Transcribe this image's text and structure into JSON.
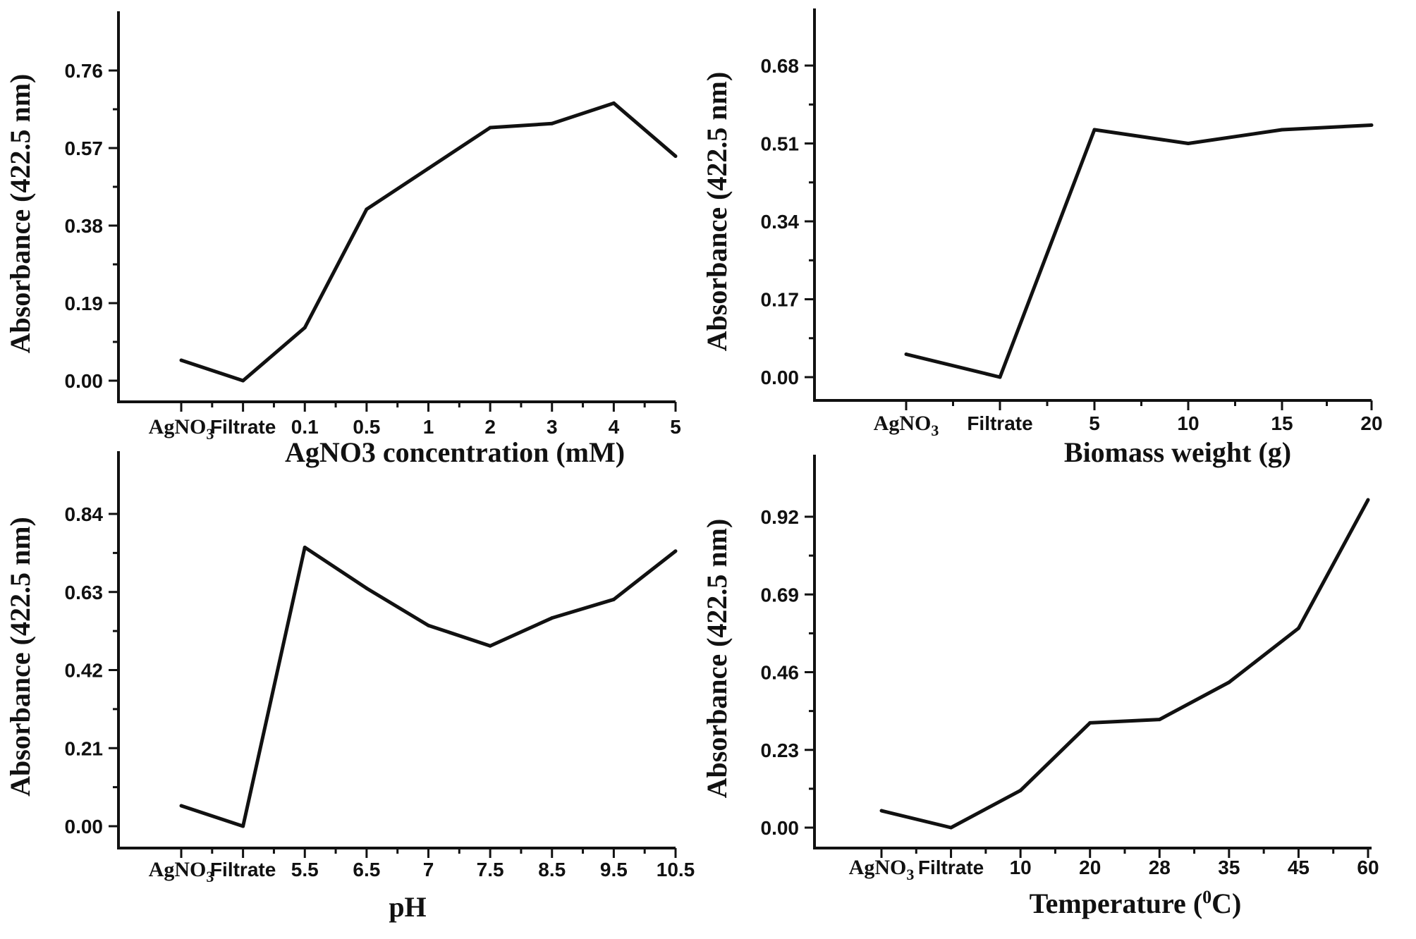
{
  "chart_data": [
    {
      "type": "line",
      "title": "",
      "ylabel": "Absorbance (422.5 nm)",
      "xlabel": "AgNO3 concentration (mM)",
      "yticks": [
        0.0,
        0.19,
        0.38,
        0.57,
        0.76
      ],
      "ytick_labels": [
        "0.00",
        "0.19",
        "0.38",
        "0.57",
        "0.76"
      ],
      "ylim": [
        -0.05,
        0.92
      ],
      "categories": [
        "AgNO3",
        "Filtrate",
        "0.1",
        "0.5",
        "1",
        "2",
        "3",
        "4",
        "5"
      ],
      "values": [
        0.05,
        0.0,
        0.13,
        0.42,
        0.52,
        0.62,
        0.63,
        0.68,
        0.55
      ]
    },
    {
      "type": "line",
      "title": "",
      "ylabel": "Absorbance (422.5 nm)",
      "xlabel": "Biomass weight (g)",
      "yticks": [
        0.0,
        0.17,
        0.34,
        0.51,
        0.68
      ],
      "ytick_labels": [
        "0.00",
        "0.17",
        "0.34",
        "0.51",
        "0.68"
      ],
      "ylim": [
        -0.05,
        0.81
      ],
      "categories": [
        "AgNO3",
        "Filtrate",
        "5",
        "10",
        "15",
        "20"
      ],
      "values": [
        0.05,
        0.0,
        0.54,
        0.51,
        0.54,
        0.55
      ]
    },
    {
      "type": "line",
      "title": "",
      "ylabel": "Absorbance (422.5 nm)",
      "xlabel": "pH",
      "yticks": [
        0.0,
        0.21,
        0.42,
        0.63,
        0.84
      ],
      "ytick_labels": [
        "0.00",
        "0.21",
        "0.42",
        "0.63",
        "0.84"
      ],
      "ylim": [
        -0.05,
        1.0
      ],
      "categories": [
        "AgNO3",
        "Filtrate",
        "5.5",
        "6.5",
        "7",
        "7.5",
        "8.5",
        "9.5",
        "10.5"
      ],
      "values": [
        0.055,
        0.0,
        0.75,
        0.64,
        0.54,
        0.485,
        0.56,
        0.61,
        0.74
      ]
    },
    {
      "type": "line",
      "title": "",
      "ylabel": "Absorbance (422.5 nm)",
      "xlabel": "Temperature (0C)",
      "yticks": [
        0.0,
        0.23,
        0.46,
        0.69,
        0.92
      ],
      "ytick_labels": [
        "0.00",
        "0.23",
        "0.46",
        "0.69",
        "0.92"
      ],
      "ylim": [
        -0.06,
        1.1
      ],
      "categories": [
        "AgNO3",
        "Filtrate",
        "10",
        "20",
        "28",
        "35",
        "45",
        "60"
      ],
      "values": [
        0.05,
        0.0,
        0.11,
        0.31,
        0.32,
        0.43,
        0.59,
        0.97
      ]
    }
  ]
}
